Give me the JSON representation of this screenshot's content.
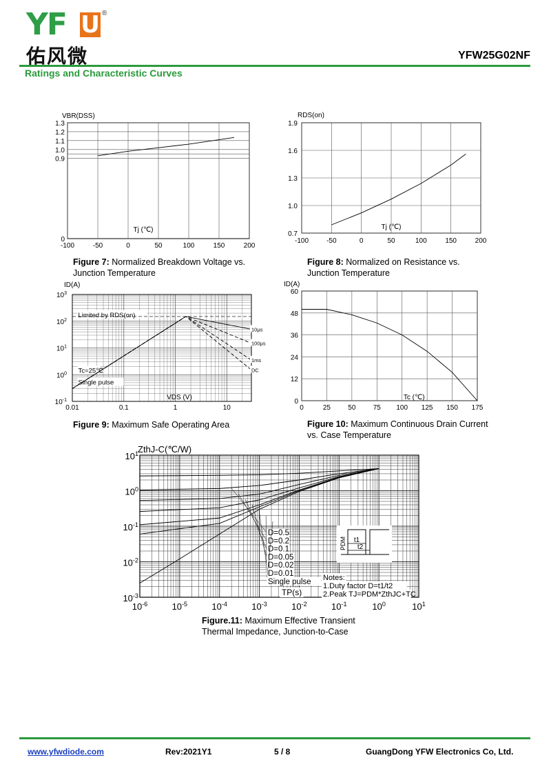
{
  "header": {
    "logo_text_yf": "YF",
    "logo_text_u": "U",
    "logo_cn": "佑风微",
    "logo_reg": "®",
    "part_number": "YFW25G02NF",
    "section_title": "Ratings and Characteristic Curves",
    "brand_color": "#2a9a3c",
    "accent_color": "#e8741a"
  },
  "figures": {
    "fig7": {
      "label": "Figure 7:",
      "text": "Normalized Breakdown Voltage vs.",
      "text2": "Junction Temperature"
    },
    "fig8": {
      "label": "Figure 8:",
      "text": "Normalized on Resistance vs.",
      "text2": "Junction Temperature"
    },
    "fig9": {
      "label": "Figure 9:",
      "text": "Maximum Safe Operating Area",
      "text2": ""
    },
    "fig10": {
      "label": "Figure 10:",
      "text": "Maximum Continuous Drain Current",
      "text2": "vs. Case Temperature"
    },
    "fig11": {
      "label": "Figure.11:",
      "text": "Maximum Effective Transient",
      "text2": "Thermal Impedance, Junction-to-Case"
    }
  },
  "chart_data": [
    {
      "id": "fig7",
      "type": "line",
      "ylabel": "VBR(DSS)",
      "xlabel": "Tj (℃)",
      "xlim": [
        -100,
        200
      ],
      "ylim": [
        0,
        1.3
      ],
      "x_ticks": [
        "-100",
        "-50",
        "0",
        "50",
        "100",
        "150",
        "200"
      ],
      "y_ticks": [
        "0",
        "0.9",
        "1.0",
        "1.1",
        "1.2",
        "1.3"
      ],
      "grid": true,
      "series": [
        {
          "x": [
            -50,
            0,
            50,
            100,
            175
          ],
          "y": [
            0.93,
            0.98,
            1.02,
            1.06,
            1.135
          ]
        }
      ]
    },
    {
      "id": "fig8",
      "type": "line",
      "ylabel": "RDS(on)",
      "xlabel": "Tj (℃)",
      "xlim": [
        -100,
        200
      ],
      "ylim": [
        0.7,
        1.9
      ],
      "x_ticks": [
        "-100",
        "-50",
        "0",
        "50",
        "100",
        "150",
        "200"
      ],
      "y_ticks": [
        "0.7",
        "1.0",
        "1.3",
        "1.6",
        "1.9"
      ],
      "grid": true,
      "series": [
        {
          "x": [
            -50,
            0,
            50,
            100,
            150,
            175
          ],
          "y": [
            0.79,
            0.92,
            1.07,
            1.24,
            1.44,
            1.56
          ]
        }
      ]
    },
    {
      "id": "fig9",
      "type": "line",
      "ylabel": "ID(A)",
      "xlabel": "VDS (V)",
      "xscale": "log",
      "yscale": "log",
      "xlim": [
        0.01,
        30
      ],
      "ylim": [
        0.1,
        1000
      ],
      "x_ticks": [
        "0.01",
        "0.1",
        "1",
        "10"
      ],
      "y_ticks_base": [
        "10",
        "10",
        "10",
        "10",
        "10"
      ],
      "y_ticks_exp": [
        "-1",
        "0",
        "1",
        "2",
        "3"
      ],
      "annotations": [
        "Limited by RDS(on)",
        "Tc=25℃",
        "Single pulse"
      ],
      "grid": true,
      "series": [
        {
          "name": "10μs",
          "x": [
            0.01,
            1.6,
            30
          ],
          "y": [
            0.3,
            150,
            50
          ]
        },
        {
          "name": "100μs",
          "x": [
            0.01,
            1.6,
            30
          ],
          "y": [
            0.3,
            150,
            15
          ]
        },
        {
          "name": "1ms",
          "x": [
            0.01,
            1.6,
            30
          ],
          "y": [
            0.3,
            150,
            3.5
          ]
        },
        {
          "name": "DC",
          "x": [
            0.01,
            1.6,
            30
          ],
          "y": [
            0.3,
            150,
            1.5
          ]
        }
      ]
    },
    {
      "id": "fig10",
      "type": "line",
      "ylabel": "ID(A)",
      "xlabel": "Tc (℃)",
      "xlim": [
        0,
        175
      ],
      "ylim": [
        0,
        60
      ],
      "x_ticks": [
        "0",
        "25",
        "50",
        "75",
        "100",
        "125",
        "150",
        "175"
      ],
      "y_ticks": [
        "0",
        "12",
        "24",
        "36",
        "48",
        "60"
      ],
      "grid": true,
      "series": [
        {
          "x": [
            0,
            25,
            50,
            75,
            100,
            125,
            150,
            175
          ],
          "y": [
            50,
            50,
            47,
            42.5,
            36,
            27,
            15.5,
            0
          ]
        }
      ]
    },
    {
      "id": "fig11",
      "type": "line",
      "ylabel": "ZthJ-C(℃/W)",
      "xlabel": "TP(s)",
      "xscale": "log",
      "yscale": "log",
      "xlim": [
        1e-06,
        10
      ],
      "ylim": [
        0.001,
        10
      ],
      "x_ticks_base": [
        "10",
        "10",
        "10",
        "10",
        "10",
        "10",
        "10",
        "10"
      ],
      "x_ticks_exp": [
        "-6",
        "-5",
        "-4",
        "-3",
        "-2",
        "-1",
        "0",
        "1"
      ],
      "y_ticks_base": [
        "10",
        "10",
        "10",
        "10",
        "10"
      ],
      "y_ticks_exp": [
        "-3",
        "-2",
        "-1",
        "0",
        "1"
      ],
      "grid": true,
      "legend": [
        "D=0.5",
        "D=0.2",
        "D=0.1",
        "D=0.05",
        "D=0.02",
        "D=0.01",
        "Single pulse"
      ],
      "notes": [
        "Notes:",
        "1.Duty factor D=t1/t2",
        "2.Peak TJ=PDM*ZthJC+TC"
      ],
      "inset_labels": [
        "PDM",
        "t1",
        "t2"
      ],
      "series": [
        {
          "name": "D=0.5",
          "x": [
            1e-06,
            0.0001,
            0.001,
            0.01,
            0.1,
            1
          ],
          "y": [
            2.6,
            2.7,
            2.8,
            3.1,
            3.6,
            4.2
          ]
        },
        {
          "name": "D=0.2",
          "x": [
            1e-06,
            0.0001,
            0.001,
            0.01,
            0.1,
            1
          ],
          "y": [
            1.05,
            1.15,
            1.4,
            2.0,
            3.0,
            4.2
          ]
        },
        {
          "name": "D=0.1",
          "x": [
            1e-06,
            0.0001,
            0.001,
            0.01,
            0.1,
            1
          ],
          "y": [
            0.53,
            0.6,
            0.8,
            1.5,
            2.7,
            4.2
          ]
        },
        {
          "name": "D=0.05",
          "x": [
            1e-06,
            0.0001,
            0.001,
            0.01,
            0.1,
            1
          ],
          "y": [
            0.26,
            0.33,
            0.55,
            1.2,
            2.5,
            4.2
          ]
        },
        {
          "name": "D=0.02",
          "x": [
            1e-06,
            0.0001,
            0.001,
            0.01,
            0.1,
            1
          ],
          "y": [
            0.11,
            0.17,
            0.4,
            1.05,
            2.4,
            4.2
          ]
        },
        {
          "name": "D=0.01",
          "x": [
            1e-06,
            0.0001,
            0.001,
            0.01,
            0.1,
            1
          ],
          "y": [
            0.06,
            0.12,
            0.35,
            1.0,
            2.35,
            4.2
          ]
        },
        {
          "name": "Single pulse",
          "x": [
            1e-06,
            1e-05,
            0.0001,
            0.001,
            0.01,
            0.1,
            1
          ],
          "y": [
            0.0025,
            0.012,
            0.06,
            0.3,
            0.95,
            2.3,
            4.2
          ]
        }
      ]
    }
  ],
  "footer": {
    "website": "www.yfwdiode.com",
    "revision": "Rev:2021Y1",
    "page": "5 / 8",
    "company": "GuangDong YFW Electronics Co, Ltd."
  }
}
